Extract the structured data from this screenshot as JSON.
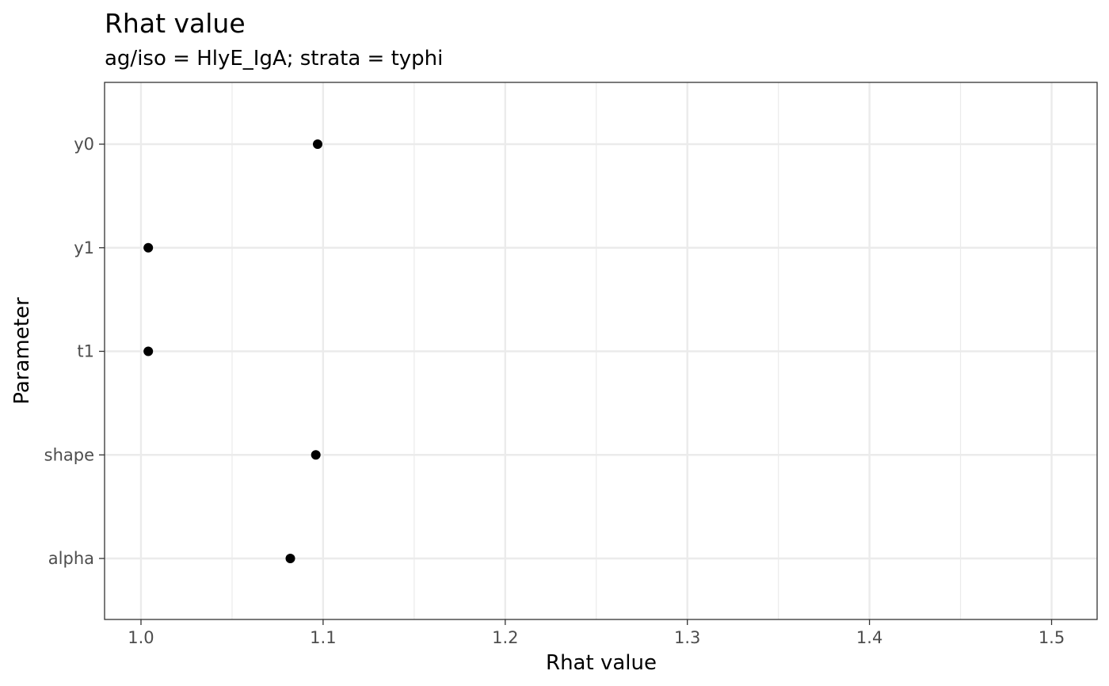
{
  "chart_data": {
    "type": "scatter",
    "title": "Rhat value",
    "subtitle": "ag/iso = HlyE_IgA; strata =  typhi",
    "xlabel": "Rhat value",
    "ylabel": "Parameter",
    "xlim": [
      0.98,
      1.525
    ],
    "x_ticks": [
      1.0,
      1.1,
      1.2,
      1.3,
      1.4,
      1.5
    ],
    "x_tick_labels": [
      "1.0",
      "1.1",
      "1.2",
      "1.3",
      "1.4",
      "1.5"
    ],
    "x_minor_ticks": [
      1.05,
      1.15,
      1.25,
      1.35,
      1.45
    ],
    "categories": [
      "y0",
      "y1",
      "t1",
      "shape",
      "alpha"
    ],
    "points": [
      {
        "y": "y0",
        "x": 1.097
      },
      {
        "y": "y1",
        "x": 1.004
      },
      {
        "y": "t1",
        "x": 1.004
      },
      {
        "y": "shape",
        "x": 1.096
      },
      {
        "y": "alpha",
        "x": 1.082
      }
    ],
    "grid": true,
    "legend": "none",
    "colors": {
      "point": "#000000",
      "grid": "#ebebeb",
      "panel_border": "#333333",
      "tick_text": "#4d4d4d",
      "background": "#ffffff"
    }
  }
}
